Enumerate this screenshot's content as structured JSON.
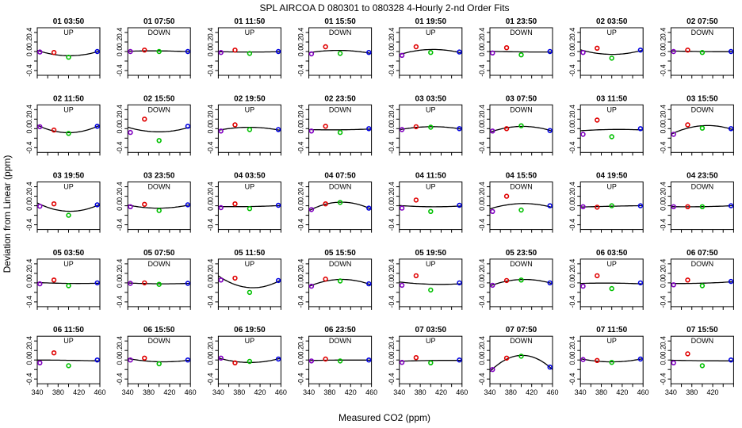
{
  "chart_data": {
    "type": "scatter",
    "title": "SPL   AIRCOA D   080301 to 080328   4-Hourly 2-nd Order Fits",
    "xlabel": "Measured CO2 (ppm)",
    "ylabel": "Deviation from Linear (ppm)",
    "xlim": [
      340,
      460
    ],
    "ylim": [
      -0.5,
      0.5
    ],
    "yticks": [
      -0.4,
      -0.2,
      0.0,
      0.2,
      0.4
    ],
    "yticks_text": [
      "-0.4",
      "-0.2",
      "0.0",
      "0.2",
      "0.4"
    ],
    "yticks_visible": [
      -0.4,
      0.0,
      0.2,
      0.4
    ],
    "yticks_visible_text": [
      "-0.4",
      "0.0",
      "0.2",
      "0.4"
    ],
    "xticks_visible": [
      340,
      380,
      420,
      460
    ],
    "xticks_visible_text": [
      "340",
      "380",
      "420",
      "460"
    ],
    "grid": false,
    "legend": "none",
    "standard_x": [
      345,
      372,
      400,
      455
    ],
    "point_colors": [
      "#8000c0",
      "#e00000",
      "#00c000",
      "#0000e0"
    ],
    "panels": [
      {
        "title": "01 03:50",
        "mode": "UP",
        "y": [
          -0.01,
          -0.02,
          -0.12,
          0.0
        ]
      },
      {
        "title": "01 07:50",
        "mode": "DOWN",
        "y": [
          0.0,
          0.03,
          0.0,
          0.0
        ]
      },
      {
        "title": "01 11:50",
        "mode": "UP",
        "y": [
          -0.02,
          0.03,
          -0.04,
          0.0
        ]
      },
      {
        "title": "01 15:50",
        "mode": "DOWN",
        "y": [
          -0.05,
          0.1,
          -0.04,
          -0.02
        ]
      },
      {
        "title": "01 19:50",
        "mode": "UP",
        "y": [
          -0.08,
          0.1,
          -0.02,
          -0.01
        ]
      },
      {
        "title": "01 23:50",
        "mode": "DOWN",
        "y": [
          -0.03,
          0.08,
          -0.07,
          0.0
        ]
      },
      {
        "title": "02 03:50",
        "mode": "UP",
        "y": [
          -0.02,
          0.07,
          -0.14,
          0.03
        ]
      },
      {
        "title": "02 07:50",
        "mode": "DOWN",
        "y": [
          0.0,
          0.03,
          -0.02,
          0.0
        ]
      },
      {
        "title": "02 11:50",
        "mode": "UP",
        "y": [
          0.04,
          -0.03,
          -0.1,
          0.05
        ]
      },
      {
        "title": "02 15:50",
        "mode": "DOWN",
        "y": [
          -0.08,
          0.2,
          -0.25,
          0.05
        ]
      },
      {
        "title": "02 19:50",
        "mode": "UP",
        "y": [
          -0.05,
          0.08,
          -0.02,
          -0.02
        ]
      },
      {
        "title": "02 23:50",
        "mode": "DOWN",
        "y": [
          -0.05,
          0.05,
          -0.08,
          0.0
        ]
      },
      {
        "title": "03 03:50",
        "mode": "UP",
        "y": [
          -0.02,
          0.04,
          0.03,
          0.0
        ]
      },
      {
        "title": "03 07:50",
        "mode": "DOWN",
        "y": [
          -0.05,
          0.0,
          0.06,
          -0.04
        ]
      },
      {
        "title": "03 11:50",
        "mode": "UP",
        "y": [
          -0.12,
          0.18,
          -0.17,
          0.0
        ]
      },
      {
        "title": "03 15:50",
        "mode": "DOWN",
        "y": [
          -0.12,
          0.08,
          0.01,
          0.0
        ]
      },
      {
        "title": "03 19:50",
        "mode": "UP",
        "y": [
          -0.01,
          0.04,
          -0.2,
          0.02
        ]
      },
      {
        "title": "03 23:50",
        "mode": "DOWN",
        "y": [
          -0.02,
          0.03,
          -0.1,
          0.02
        ]
      },
      {
        "title": "04 03:50",
        "mode": "UP",
        "y": [
          -0.04,
          0.04,
          -0.06,
          0.01
        ]
      },
      {
        "title": "04 07:50",
        "mode": "DOWN",
        "y": [
          -0.08,
          0.04,
          0.07,
          -0.05
        ]
      },
      {
        "title": "04 11:50",
        "mode": "UP",
        "y": [
          -0.05,
          0.12,
          -0.12,
          0.01
        ]
      },
      {
        "title": "04 15:50",
        "mode": "DOWN",
        "y": [
          -0.12,
          0.2,
          -0.09,
          0.0
        ]
      },
      {
        "title": "04 19:50",
        "mode": "UP",
        "y": [
          -0.02,
          -0.03,
          0.0,
          0.0
        ]
      },
      {
        "title": "04 23:50",
        "mode": "DOWN",
        "y": [
          -0.02,
          -0.02,
          -0.02,
          0.0
        ]
      },
      {
        "title": "05 03:50",
        "mode": "UP",
        "y": [
          -0.02,
          0.06,
          -0.06,
          0.0
        ]
      },
      {
        "title": "05 07:50",
        "mode": "DOWN",
        "y": [
          -0.01,
          0.0,
          -0.03,
          -0.01
        ]
      },
      {
        "title": "05 11:50",
        "mode": "UP",
        "y": [
          0.06,
          0.1,
          -0.2,
          0.05
        ]
      },
      {
        "title": "05 15:50",
        "mode": "DOWN",
        "y": [
          -0.07,
          0.08,
          0.04,
          -0.02
        ]
      },
      {
        "title": "05 19:50",
        "mode": "UP",
        "y": [
          -0.05,
          0.15,
          -0.15,
          0.0
        ]
      },
      {
        "title": "05 23:50",
        "mode": "DOWN",
        "y": [
          -0.05,
          0.05,
          0.06,
          0.0
        ]
      },
      {
        "title": "06 03:50",
        "mode": "UP",
        "y": [
          -0.07,
          0.15,
          -0.12,
          0.0
        ]
      },
      {
        "title": "06 07:50",
        "mode": "DOWN",
        "y": [
          -0.04,
          0.06,
          -0.06,
          0.03
        ]
      },
      {
        "title": "06 11:50",
        "mode": "UP",
        "y": [
          -0.06,
          0.15,
          -0.12,
          0.0
        ]
      },
      {
        "title": "06 15:50",
        "mode": "DOWN",
        "y": [
          0.0,
          0.04,
          -0.08,
          0.0
        ]
      },
      {
        "title": "06 19:50",
        "mode": "UP",
        "y": [
          0.04,
          -0.06,
          -0.03,
          0.02
        ]
      },
      {
        "title": "06 23:50",
        "mode": "DOWN",
        "y": [
          -0.02,
          0.02,
          -0.02,
          0.0
        ]
      },
      {
        "title": "07 03:50",
        "mode": "UP",
        "y": [
          -0.05,
          0.05,
          -0.06,
          0.0
        ]
      },
      {
        "title": "07 07:50",
        "mode": "DOWN",
        "y": [
          -0.2,
          0.04,
          0.08,
          -0.15
        ]
      },
      {
        "title": "07 11:50",
        "mode": "UP",
        "y": [
          0.01,
          -0.01,
          -0.05,
          0.02
        ]
      },
      {
        "title": "07 15:50",
        "mode": "DOWN",
        "y": [
          -0.06,
          0.13,
          -0.12,
          0.0
        ]
      }
    ]
  }
}
